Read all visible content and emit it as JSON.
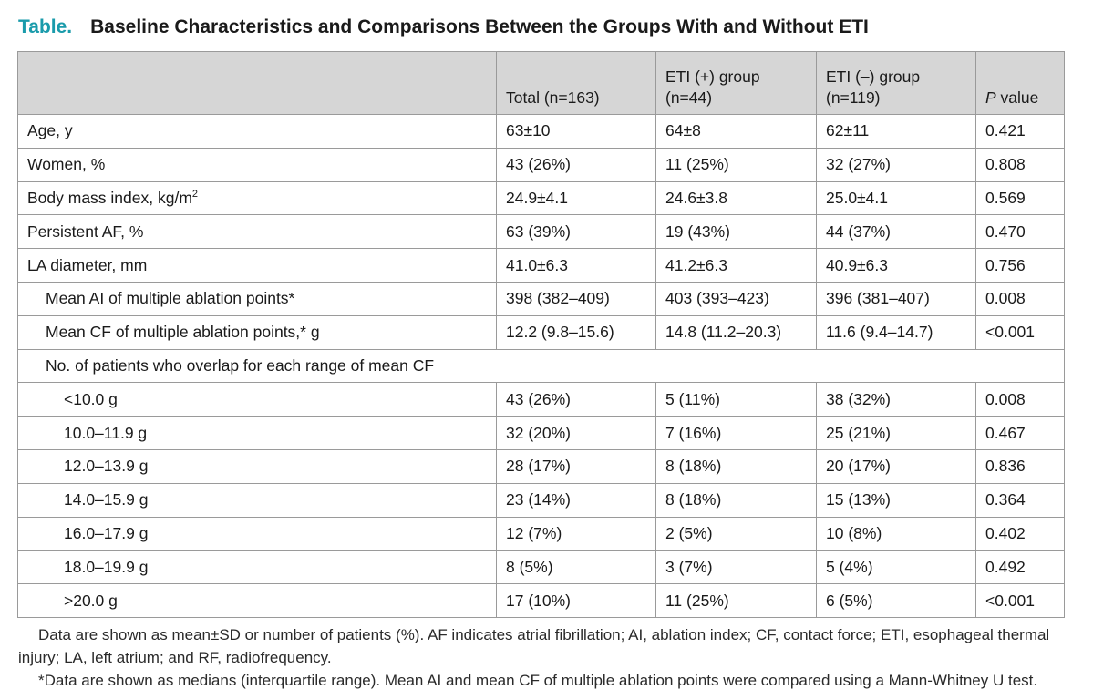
{
  "title": {
    "label": "Table.",
    "text": "Baseline Characteristics and Comparisons Between the Groups With and Without ETI"
  },
  "table": {
    "headers": {
      "col0": "",
      "col1": "Total (n=163)",
      "col2": "ETI (+) group (n=44)",
      "col3": "ETI (–) group (n=119)",
      "col4_italic": "P",
      "col4_rest": " value"
    },
    "rows": [
      {
        "label": "Age, y",
        "total": "63±10",
        "eti_pos": "64±8",
        "eti_neg": "62±11",
        "p": "0.421"
      },
      {
        "label": "Women, %",
        "total": "43 (26%)",
        "eti_pos": "11 (25%)",
        "eti_neg": "32 (27%)",
        "p": "0.808"
      },
      {
        "label": "Body mass index, kg/m",
        "label_sup": "2",
        "total": "24.9±4.1",
        "eti_pos": "24.6±3.8",
        "eti_neg": "25.0±4.1",
        "p": "0.569"
      },
      {
        "label": "Persistent AF, %",
        "total": "63 (39%)",
        "eti_pos": "19 (43%)",
        "eti_neg": "44 (37%)",
        "p": "0.470"
      },
      {
        "label": "LA diameter, mm",
        "total": "41.0±6.3",
        "eti_pos": "41.2±6.3",
        "eti_neg": "40.9±6.3",
        "p": "0.756"
      },
      {
        "label": "Mean AI of multiple ablation points*",
        "total": "398 (382–409)",
        "eti_pos": "403 (393–423)",
        "eti_neg": "396 (381–407)",
        "p": "0.008"
      },
      {
        "label": "Mean CF of multiple ablation points,* g",
        "total": "12.2 (9.8–15.6)",
        "eti_pos": "14.8 (11.2–20.3)",
        "eti_neg": "11.6 (9.4–14.7)",
        "p": "<0.001"
      },
      {
        "label": "No. of patients who overlap for each range of mean CF"
      },
      {
        "label": "<10.0 g",
        "total": "43 (26%)",
        "eti_pos": "5 (11%)",
        "eti_neg": "38 (32%)",
        "p": "0.008"
      },
      {
        "label": "10.0–11.9 g",
        "total": "32 (20%)",
        "eti_pos": "7 (16%)",
        "eti_neg": "25 (21%)",
        "p": "0.467"
      },
      {
        "label": "12.0–13.9 g",
        "total": "28 (17%)",
        "eti_pos": "8 (18%)",
        "eti_neg": "20 (17%)",
        "p": "0.836"
      },
      {
        "label": "14.0–15.9 g",
        "total": "23 (14%)",
        "eti_pos": "8 (18%)",
        "eti_neg": "15 (13%)",
        "p": "0.364"
      },
      {
        "label": "16.0–17.9 g",
        "total": "12 (7%)",
        "eti_pos": "2 (5%)",
        "eti_neg": "10 (8%)",
        "p": "0.402"
      },
      {
        "label": "18.0–19.9 g",
        "total": "8 (5%)",
        "eti_pos": "3 (7%)",
        "eti_neg": "5 (4%)",
        "p": "0.492"
      },
      {
        "label": ">20.0 g",
        "total": "17 (10%)",
        "eti_pos": "11 (25%)",
        "eti_neg": "6 (5%)",
        "p": "<0.001"
      }
    ]
  },
  "footnotes": {
    "note1": "Data are shown as mean±SD or number of patients (%). AF indicates atrial fibrillation; AI, ablation index; CF, contact force; ETI, esophageal thermal injury; LA, left atrium; and RF, radiofrequency.",
    "note2": "*Data are shown as medians (interquartile range). Mean AI and mean CF of multiple ablation points were compared using a Mann-Whitney U test."
  },
  "colors": {
    "title_accent": "#1a9bab",
    "header_bg": "#d6d6d6",
    "border": "#9a9a9a"
  }
}
